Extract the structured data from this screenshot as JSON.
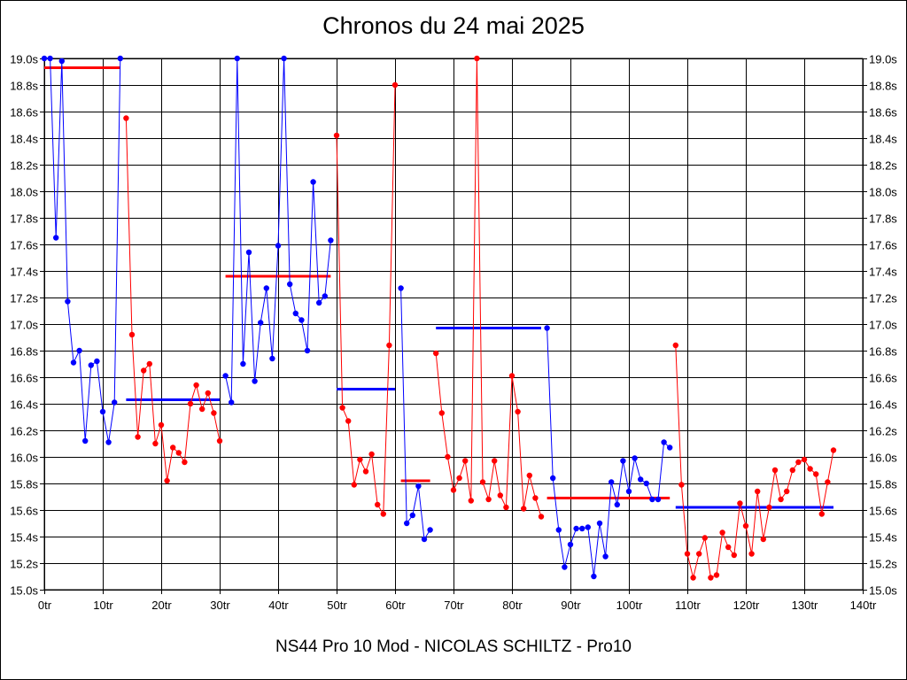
{
  "chart_data": {
    "type": "line",
    "title": "Chronos du 24 mai 2025",
    "subtitle": "NS44 Pro 10 Mod - NICOLAS SCHILTZ - Pro10",
    "xlim": [
      0,
      140
    ],
    "ylim": [
      15.0,
      19.0
    ],
    "x_ticks": [
      "0tr",
      "10tr",
      "20tr",
      "30tr",
      "40tr",
      "50tr",
      "60tr",
      "70tr",
      "80tr",
      "90tr",
      "100tr",
      "110tr",
      "120tr",
      "130tr",
      "140tr"
    ],
    "y_ticks": [
      "15.0s",
      "15.2s",
      "15.4s",
      "15.6s",
      "15.8s",
      "16.0s",
      "16.2s",
      "16.4s",
      "16.6s",
      "16.8s",
      "17.0s",
      "17.2s",
      "17.4s",
      "17.6s",
      "17.8s",
      "18.0s",
      "18.2s",
      "18.4s",
      "18.6s",
      "18.8s",
      "19.0s"
    ],
    "grid": true,
    "colors": {
      "blue": "#0000ff",
      "red": "#ff0000",
      "grid": "#000000"
    },
    "stints": [
      {
        "color": "blue",
        "x_start": 0,
        "avg": null,
        "y": [
          19.0,
          19.0,
          17.65,
          18.98,
          17.17,
          16.71,
          16.8,
          16.12,
          16.69,
          16.72,
          16.34,
          16.11,
          16.41,
          19.0
        ]
      },
      {
        "color": "red",
        "x_start": 14,
        "avg": null,
        "y": [
          18.55,
          16.92,
          16.15,
          16.65,
          16.7,
          16.1,
          16.24,
          15.82,
          16.07,
          16.03,
          15.96,
          16.4,
          16.54,
          16.36,
          16.48,
          16.33,
          16.12
        ]
      },
      {
        "color": "blue",
        "x_start": 31,
        "avg": null,
        "y": [
          16.61,
          16.41,
          19.0,
          16.7,
          17.54,
          16.57,
          17.01,
          17.27,
          16.74,
          17.59,
          19.0,
          17.3,
          17.08,
          17.03,
          16.8,
          18.07,
          17.16,
          17.21,
          17.63
        ]
      },
      {
        "color": "red",
        "x_start": 50,
        "avg": null,
        "y": [
          18.42,
          16.37,
          16.27,
          15.79,
          15.98,
          15.89,
          16.02,
          15.64,
          15.57,
          16.84,
          18.8
        ]
      },
      {
        "color": "blue",
        "x_start": 61,
        "avg": null,
        "y": [
          17.27,
          15.5,
          15.56,
          15.78,
          15.38,
          15.45
        ]
      },
      {
        "color": "red",
        "x_start": 67,
        "avg": null,
        "y": [
          16.78,
          16.33,
          16.0,
          15.75,
          15.84,
          15.97,
          15.67,
          19.0,
          15.81,
          15.68,
          15.97,
          15.71,
          15.62,
          16.61,
          16.34,
          15.61,
          15.86,
          15.69,
          15.55
        ]
      },
      {
        "color": "blue",
        "x_start": 86,
        "avg": null,
        "y": [
          16.97,
          15.84,
          15.45,
          15.17,
          15.34,
          15.46,
          15.46,
          15.47,
          15.1,
          15.5,
          15.25,
          15.81,
          15.64,
          15.97,
          15.74,
          15.99,
          15.83,
          15.8,
          15.68,
          15.68,
          16.11,
          16.07
        ]
      },
      {
        "color": "red",
        "x_start": 108,
        "avg": null,
        "y": [
          16.84,
          15.79,
          15.27,
          15.09,
          15.27,
          15.39,
          15.09,
          15.11,
          15.43,
          15.32,
          15.26,
          15.65,
          15.48,
          15.27,
          15.74,
          15.38,
          15.62,
          15.9,
          15.68,
          15.74,
          15.9,
          15.96,
          15.98,
          15.91,
          15.87,
          15.57,
          15.81,
          16.05
        ]
      }
    ],
    "averages": [
      {
        "color": "red",
        "x_from": 0,
        "x_to": 13,
        "value": 18.93
      },
      {
        "color": "blue",
        "x_from": 14,
        "x_to": 30,
        "value": 16.43
      },
      {
        "color": "red",
        "x_from": 31,
        "x_to": 49,
        "value": 17.36
      },
      {
        "color": "blue",
        "x_from": 50,
        "x_to": 60,
        "value": 16.51
      },
      {
        "color": "red",
        "x_from": 61,
        "x_to": 66,
        "value": 15.82
      },
      {
        "color": "blue",
        "x_from": 67,
        "x_to": 85,
        "value": 16.97
      },
      {
        "color": "red",
        "x_from": 86,
        "x_to": 107,
        "value": 15.69
      },
      {
        "color": "blue",
        "x_from": 108,
        "x_to": 135,
        "value": 15.62
      }
    ]
  }
}
